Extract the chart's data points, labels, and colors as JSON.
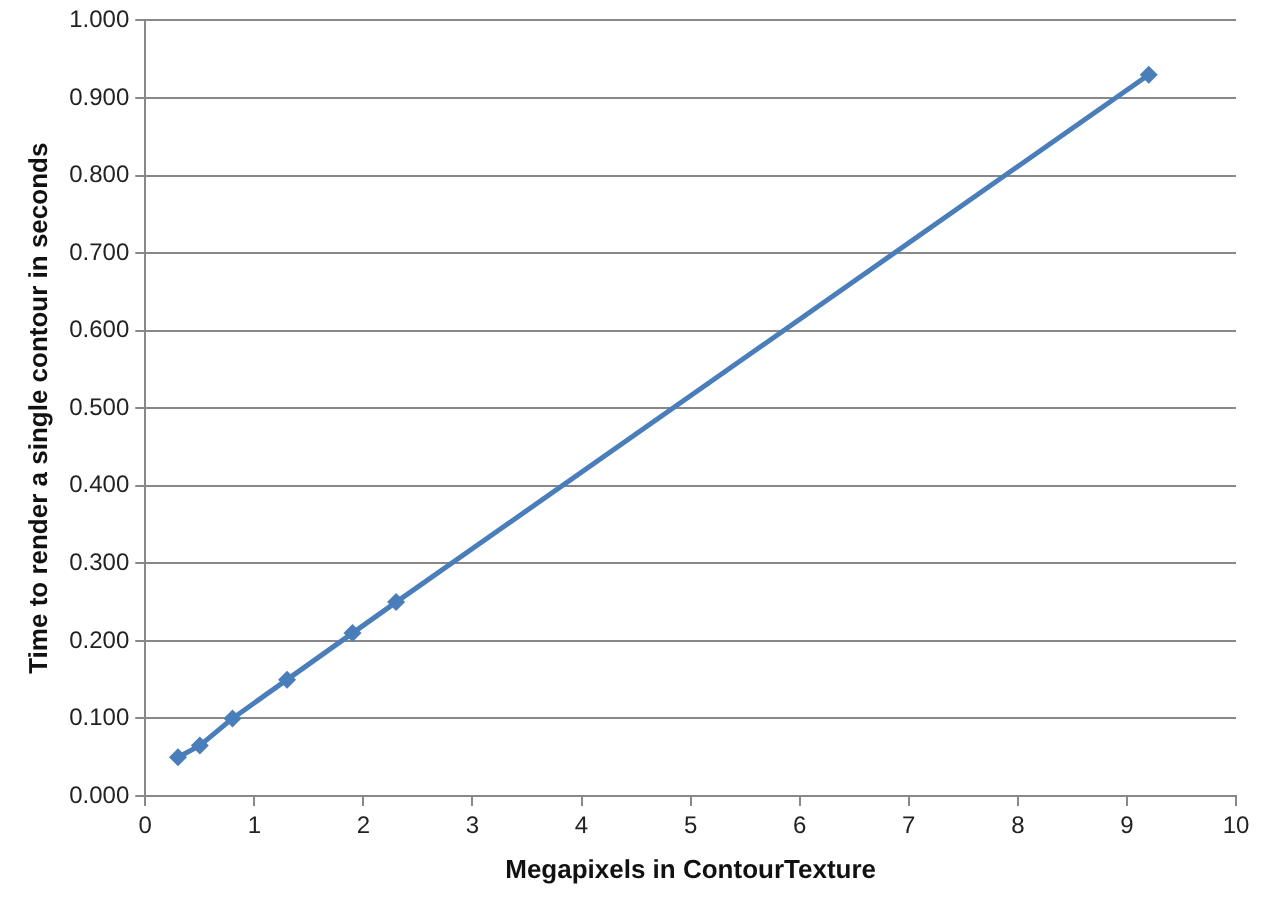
{
  "chart_data": {
    "type": "line",
    "xlabel": "Megapixels in ContourTexture",
    "ylabel": "Time to render a single contour in seconds",
    "x": [
      0.3,
      0.5,
      0.8,
      1.3,
      1.9,
      2.3,
      9.2
    ],
    "series": [
      {
        "color": "#4a7ebb",
        "values": [
          0.05,
          0.065,
          0.1,
          0.15,
          0.21,
          0.25,
          0.93
        ]
      }
    ],
    "xlim": [
      0,
      10
    ],
    "xticks": [
      0,
      1,
      2,
      3,
      4,
      5,
      6,
      7,
      8,
      9,
      10
    ],
    "ylim": [
      0,
      1
    ],
    "yticks": [
      {
        "value": 0,
        "label": "0.000"
      },
      {
        "value": 0.1,
        "label": "0.100"
      },
      {
        "value": 0.2,
        "label": "0.200"
      },
      {
        "value": 0.3,
        "label": "0.300"
      },
      {
        "value": 0.4,
        "label": "0.400"
      },
      {
        "value": 0.5,
        "label": "0.500"
      },
      {
        "value": 0.6,
        "label": "0.600"
      },
      {
        "value": 0.7,
        "label": "0.700"
      },
      {
        "value": 0.8,
        "label": "0.800"
      },
      {
        "value": 0.9,
        "label": "0.900"
      },
      {
        "value": 1,
        "label": "1.000"
      }
    ],
    "grid": "y",
    "marker": "diamond",
    "line_style": "solid"
  }
}
